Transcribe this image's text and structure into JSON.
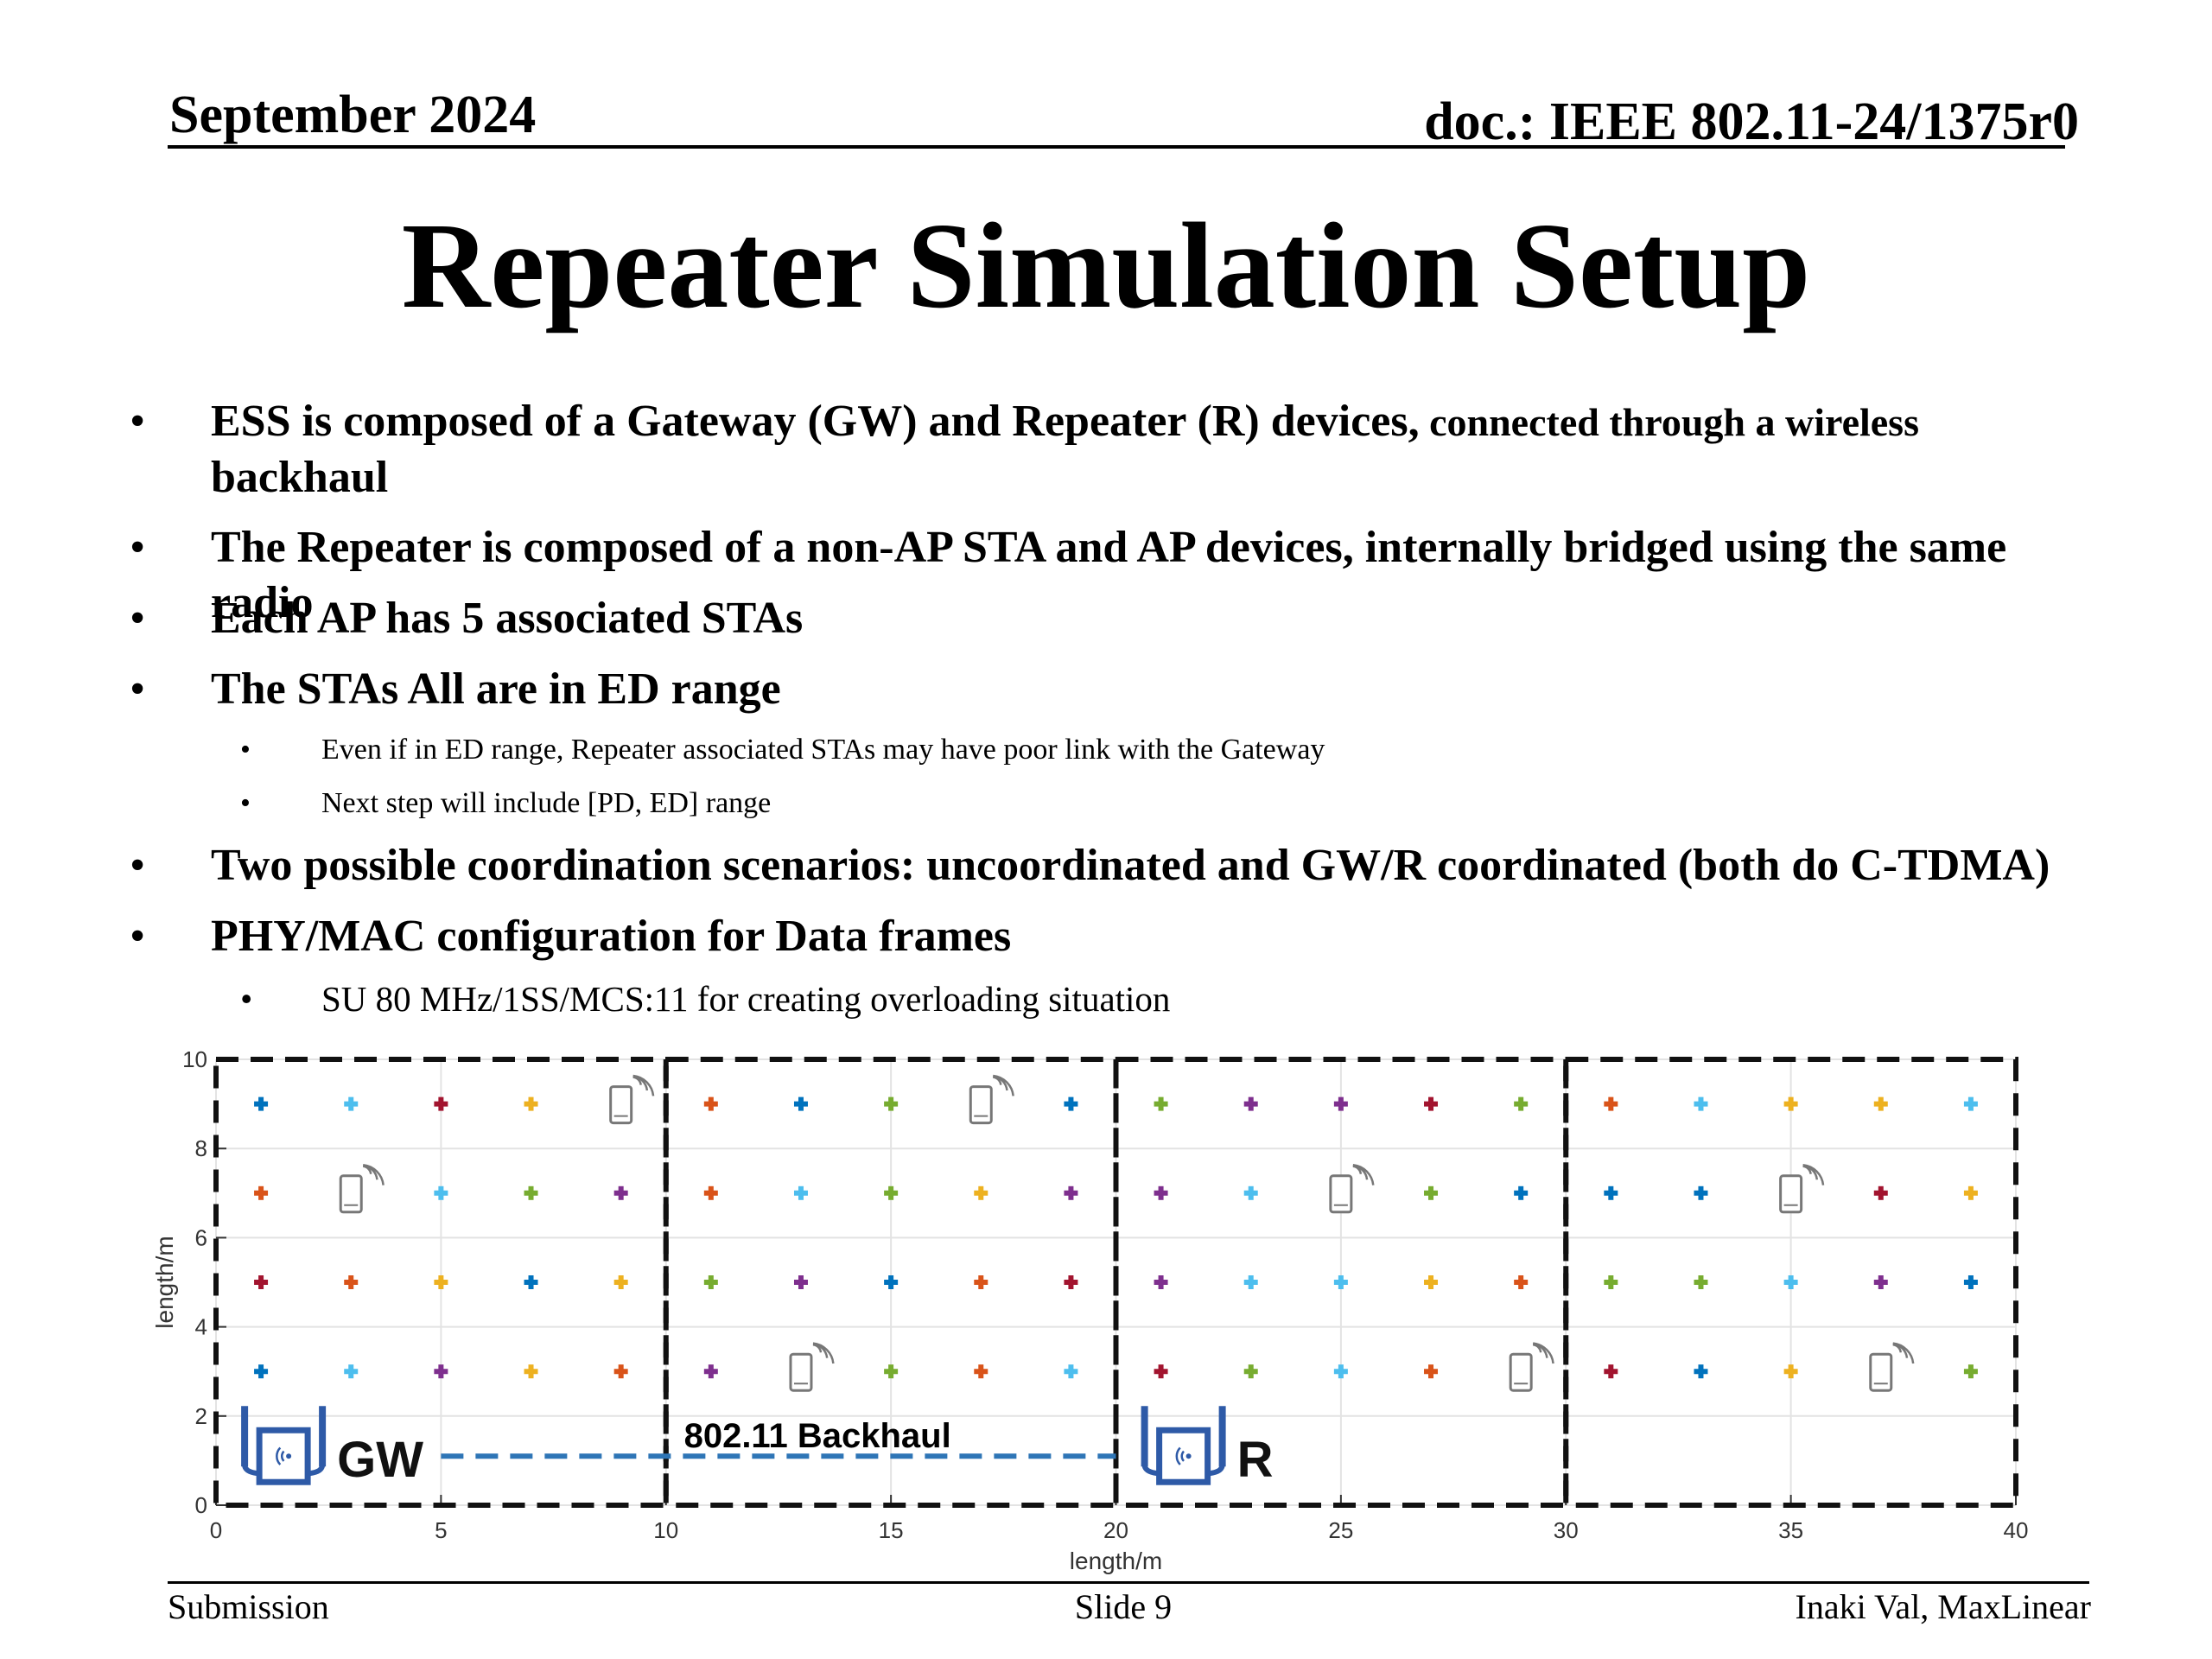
{
  "header": {
    "date": "September 2024",
    "doc": "doc.: IEEE 802.11-24/1375r0"
  },
  "title": "Repeater Simulation Setup",
  "bullets": [
    {
      "bold": "ESS is composed of a Gateway (GW) and Repeater (R) devices,",
      "small": " connected through a wireless",
      "cont": "backhaul"
    },
    {
      "text": "The Repeater is composed of a non-AP STA and AP devices, internally bridged using the same radio"
    },
    {
      "text": "Each AP has 5 associated STAs"
    },
    {
      "text": "The STAs All are in ED range"
    },
    {
      "text": "Two possible coordination scenarios: uncoordinated and GW/R coordinated (both do C-TDMA)"
    },
    {
      "text": "PHY/MAC configuration for Data frames"
    }
  ],
  "subbullets": [
    "Even if in ED range, Repeater associated STAs may have poor link with the Gateway",
    "Next step will include [PD, ED] range",
    "SU 80 MHz/1SS/MCS:11 for creating overloading situation"
  ],
  "bullet_glyph": "•",
  "chart_data": {
    "type": "scatter",
    "xlabel": "length/m",
    "ylabel": "length/m",
    "xlim": [
      0,
      40
    ],
    "ylim": [
      0,
      10
    ],
    "xticks": [
      0,
      5,
      10,
      15,
      20,
      25,
      30,
      35,
      40
    ],
    "yticks": [
      0,
      2,
      4,
      6,
      8,
      10
    ],
    "grid": true,
    "region_boundaries_x": [
      0,
      10,
      20,
      30,
      40
    ],
    "points": [
      {
        "x": 1,
        "y": 9,
        "c": "#0072bd"
      },
      {
        "x": 3,
        "y": 9,
        "c": "#4dbeee"
      },
      {
        "x": 5,
        "y": 9,
        "c": "#a2142f"
      },
      {
        "x": 7,
        "y": 9,
        "c": "#edb120"
      },
      {
        "x": 1,
        "y": 7,
        "c": "#d95319"
      },
      {
        "x": 5,
        "y": 7,
        "c": "#4dbeee"
      },
      {
        "x": 7,
        "y": 7,
        "c": "#77ac30"
      },
      {
        "x": 9,
        "y": 7,
        "c": "#7e2f8e"
      },
      {
        "x": 1,
        "y": 5,
        "c": "#a2142f"
      },
      {
        "x": 3,
        "y": 5,
        "c": "#d95319"
      },
      {
        "x": 5,
        "y": 5,
        "c": "#edb120"
      },
      {
        "x": 7,
        "y": 5,
        "c": "#0072bd"
      },
      {
        "x": 9,
        "y": 5,
        "c": "#edb120"
      },
      {
        "x": 1,
        "y": 3,
        "c": "#0072bd"
      },
      {
        "x": 3,
        "y": 3,
        "c": "#4dbeee"
      },
      {
        "x": 5,
        "y": 3,
        "c": "#7e2f8e"
      },
      {
        "x": 7,
        "y": 3,
        "c": "#edb120"
      },
      {
        "x": 9,
        "y": 3,
        "c": "#d95319"
      },
      {
        "x": 11,
        "y": 9,
        "c": "#d95319"
      },
      {
        "x": 13,
        "y": 9,
        "c": "#0072bd"
      },
      {
        "x": 15,
        "y": 9,
        "c": "#77ac30"
      },
      {
        "x": 19,
        "y": 9,
        "c": "#0072bd"
      },
      {
        "x": 11,
        "y": 7,
        "c": "#d95319"
      },
      {
        "x": 13,
        "y": 7,
        "c": "#4dbeee"
      },
      {
        "x": 15,
        "y": 7,
        "c": "#77ac30"
      },
      {
        "x": 17,
        "y": 7,
        "c": "#edb120"
      },
      {
        "x": 19,
        "y": 7,
        "c": "#7e2f8e"
      },
      {
        "x": 11,
        "y": 5,
        "c": "#77ac30"
      },
      {
        "x": 13,
        "y": 5,
        "c": "#7e2f8e"
      },
      {
        "x": 15,
        "y": 5,
        "c": "#0072bd"
      },
      {
        "x": 17,
        "y": 5,
        "c": "#d95319"
      },
      {
        "x": 19,
        "y": 5,
        "c": "#a2142f"
      },
      {
        "x": 11,
        "y": 3,
        "c": "#7e2f8e"
      },
      {
        "x": 15,
        "y": 3,
        "c": "#77ac30"
      },
      {
        "x": 17,
        "y": 3,
        "c": "#d95319"
      },
      {
        "x": 19,
        "y": 3,
        "c": "#4dbeee"
      },
      {
        "x": 21,
        "y": 9,
        "c": "#77ac30"
      },
      {
        "x": 23,
        "y": 9,
        "c": "#7e2f8e"
      },
      {
        "x": 25,
        "y": 9,
        "c": "#7e2f8e"
      },
      {
        "x": 27,
        "y": 9,
        "c": "#a2142f"
      },
      {
        "x": 29,
        "y": 9,
        "c": "#77ac30"
      },
      {
        "x": 21,
        "y": 7,
        "c": "#7e2f8e"
      },
      {
        "x": 23,
        "y": 7,
        "c": "#4dbeee"
      },
      {
        "x": 27,
        "y": 7,
        "c": "#77ac30"
      },
      {
        "x": 29,
        "y": 7,
        "c": "#0072bd"
      },
      {
        "x": 21,
        "y": 5,
        "c": "#7e2f8e"
      },
      {
        "x": 23,
        "y": 5,
        "c": "#4dbeee"
      },
      {
        "x": 25,
        "y": 5,
        "c": "#4dbeee"
      },
      {
        "x": 27,
        "y": 5,
        "c": "#edb120"
      },
      {
        "x": 29,
        "y": 5,
        "c": "#d95319"
      },
      {
        "x": 21,
        "y": 3,
        "c": "#a2142f"
      },
      {
        "x": 23,
        "y": 3,
        "c": "#77ac30"
      },
      {
        "x": 25,
        "y": 3,
        "c": "#4dbeee"
      },
      {
        "x": 27,
        "y": 3,
        "c": "#d95319"
      },
      {
        "x": 31,
        "y": 9,
        "c": "#d95319"
      },
      {
        "x": 33,
        "y": 9,
        "c": "#4dbeee"
      },
      {
        "x": 35,
        "y": 9,
        "c": "#edb120"
      },
      {
        "x": 37,
        "y": 9,
        "c": "#edb120"
      },
      {
        "x": 39,
        "y": 9,
        "c": "#4dbeee"
      },
      {
        "x": 31,
        "y": 7,
        "c": "#0072bd"
      },
      {
        "x": 33,
        "y": 7,
        "c": "#0072bd"
      },
      {
        "x": 37,
        "y": 7,
        "c": "#a2142f"
      },
      {
        "x": 39,
        "y": 7,
        "c": "#edb120"
      },
      {
        "x": 31,
        "y": 5,
        "c": "#77ac30"
      },
      {
        "x": 33,
        "y": 5,
        "c": "#77ac30"
      },
      {
        "x": 35,
        "y": 5,
        "c": "#4dbeee"
      },
      {
        "x": 37,
        "y": 5,
        "c": "#7e2f8e"
      },
      {
        "x": 39,
        "y": 5,
        "c": "#0072bd"
      },
      {
        "x": 31,
        "y": 3,
        "c": "#a2142f"
      },
      {
        "x": 33,
        "y": 3,
        "c": "#0072bd"
      },
      {
        "x": 35,
        "y": 3,
        "c": "#edb120"
      },
      {
        "x": 39,
        "y": 3,
        "c": "#77ac30"
      }
    ],
    "phones": [
      {
        "x": 9,
        "y": 9
      },
      {
        "x": 17,
        "y": 9
      },
      {
        "x": 3,
        "y": 7
      },
      {
        "x": 25,
        "y": 7
      },
      {
        "x": 35,
        "y": 7
      },
      {
        "x": 13,
        "y": 3
      },
      {
        "x": 29,
        "y": 3
      },
      {
        "x": 37,
        "y": 3
      }
    ],
    "devices": [
      {
        "label": "GW",
        "x": 1.5,
        "y": 1.1
      },
      {
        "label": "R",
        "x": 21.5,
        "y": 1.1
      }
    ],
    "backhaul": {
      "label": "802.11 Backhaul",
      "x": [
        5,
        20
      ],
      "y": 1.1,
      "color": "#2e75b6"
    },
    "device_color": "#2e5aa7"
  }
}
